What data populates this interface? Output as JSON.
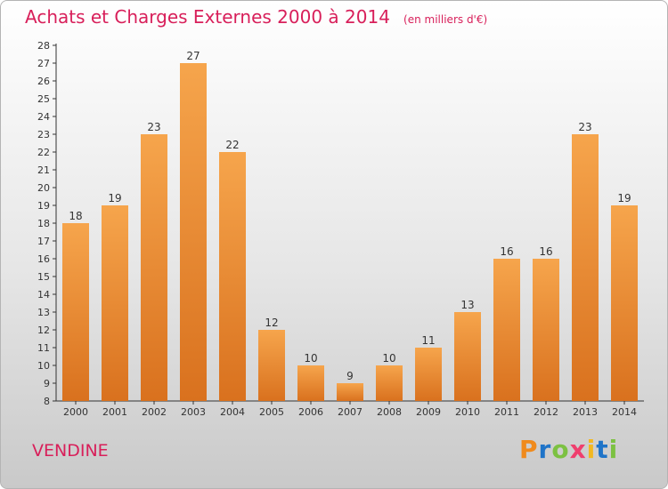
{
  "chart_data": {
    "type": "bar",
    "title": "Achats et Charges Externes 2000 à 2014",
    "unit_note": "(en milliers d'€)",
    "categories": [
      "2000",
      "2001",
      "2002",
      "2003",
      "2004",
      "2005",
      "2006",
      "2007",
      "2008",
      "2009",
      "2010",
      "2011",
      "2012",
      "2013",
      "2014"
    ],
    "values": [
      18,
      19,
      23,
      27,
      22,
      12,
      10,
      9,
      10,
      11,
      13,
      16,
      16,
      23,
      19
    ],
    "ylim": [
      8,
      28
    ],
    "yticks": [
      8,
      9,
      10,
      11,
      12,
      13,
      14,
      15,
      16,
      17,
      18,
      19,
      20,
      21,
      22,
      23,
      24,
      25,
      26,
      27,
      28
    ],
    "xlabel": "",
    "ylabel": "",
    "grid": false,
    "bar_color_top": "#f6a54c",
    "bar_color_bottom": "#d9711e"
  },
  "footer": {
    "place": "VENDINE",
    "brand": [
      "P",
      "r",
      "o",
      "x",
      "i",
      "t",
      "i"
    ],
    "brand_colors": [
      "#f08a1c",
      "#1f74c8",
      "#7cc142",
      "#ef3f6e",
      "#f2b821",
      "#1f74c8",
      "#7cc142"
    ]
  },
  "colors": {
    "title": "#d81f5a",
    "axis": "#333333",
    "text": "#333333"
  }
}
